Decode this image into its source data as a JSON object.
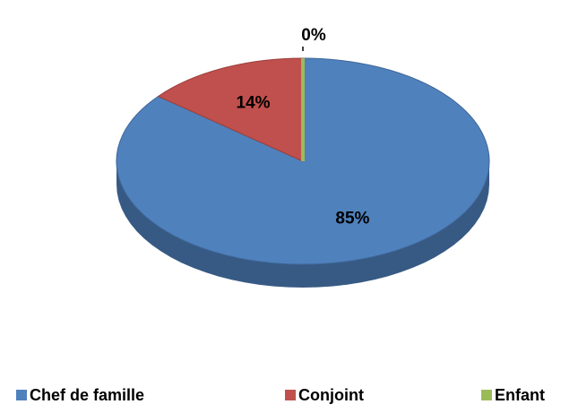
{
  "chart_data": {
    "type": "pie",
    "categories": [
      "Chef de famille",
      "Conjoint",
      "Enfant"
    ],
    "values": [
      85,
      14,
      0
    ],
    "value_labels": [
      "85%",
      "14%",
      "0%"
    ],
    "colors": [
      "#4f81bd",
      "#c0504d",
      "#9bbb59"
    ],
    "legend": "bottom"
  }
}
